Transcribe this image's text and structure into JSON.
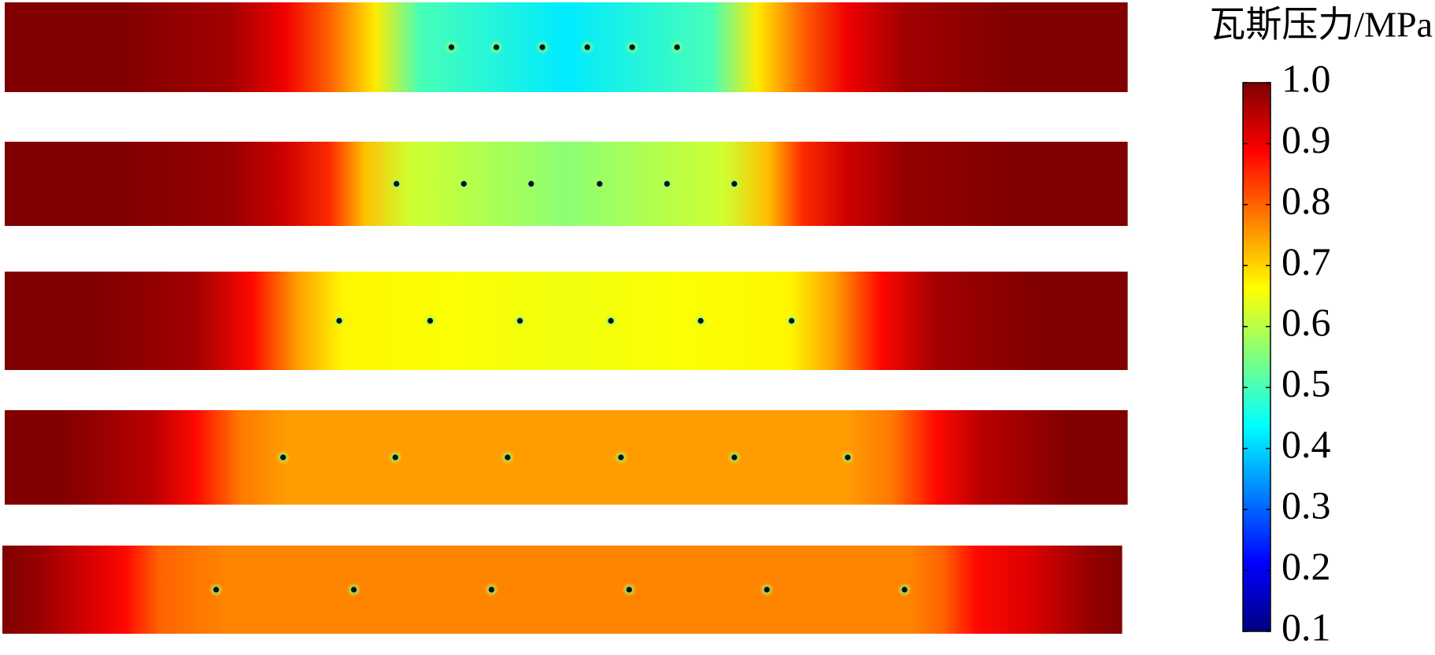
{
  "chart_data": {
    "type": "heatmap",
    "colorbar_title": "瓦斯压力/MPa",
    "clim": [
      0.1,
      1.0
    ],
    "cticks": [
      0.1,
      0.2,
      0.3,
      0.4,
      0.5,
      0.6,
      0.7,
      0.8,
      0.9,
      {
        "value": 1.0,
        "label": "1.0"
      }
    ],
    "colormap": "jet",
    "panels": [
      {
        "x": [
          0,
          0.1,
          0.2,
          0.25,
          0.29,
          0.33,
          0.37,
          0.5,
          0.63,
          0.67,
          0.71,
          0.75,
          0.8,
          0.9,
          1.0
        ],
        "values": [
          1,
          1,
          0.97,
          0.9,
          0.8,
          0.68,
          0.5,
          0.42,
          0.5,
          0.68,
          0.8,
          0.9,
          0.97,
          1,
          1
        ],
        "boreholes": [
          0.398,
          0.438,
          0.479,
          0.519,
          0.559,
          0.599
        ]
      },
      {
        "x": [
          0,
          0.1,
          0.2,
          0.25,
          0.29,
          0.32,
          0.36,
          0.5,
          0.64,
          0.68,
          0.71,
          0.75,
          0.8,
          0.9,
          1.0
        ],
        "values": [
          1,
          1,
          0.98,
          0.93,
          0.85,
          0.72,
          0.62,
          0.56,
          0.62,
          0.72,
          0.85,
          0.93,
          0.98,
          1,
          1
        ],
        "boreholes": [
          0.349,
          0.409,
          0.469,
          0.53,
          0.59,
          0.65
        ]
      },
      {
        "x": [
          0,
          0.08,
          0.17,
          0.22,
          0.26,
          0.3,
          0.4,
          0.5,
          0.6,
          0.7,
          0.74,
          0.78,
          0.83,
          0.92,
          1.0
        ],
        "values": [
          1,
          1,
          0.97,
          0.88,
          0.75,
          0.67,
          0.66,
          0.65,
          0.66,
          0.67,
          0.75,
          0.88,
          0.97,
          1,
          1
        ],
        "boreholes": [
          0.298,
          0.379,
          0.459,
          0.54,
          0.62,
          0.701
        ]
      },
      {
        "x": [
          0,
          0.05,
          0.13,
          0.17,
          0.21,
          0.25,
          0.4,
          0.5,
          0.6,
          0.75,
          0.79,
          0.83,
          0.87,
          0.95,
          1.0
        ],
        "values": [
          1,
          1,
          0.95,
          0.88,
          0.78,
          0.75,
          0.75,
          0.75,
          0.75,
          0.75,
          0.78,
          0.88,
          0.95,
          1,
          1
        ],
        "boreholes": [
          0.248,
          0.348,
          0.448,
          0.549,
          0.65,
          0.751
        ]
      },
      {
        "x": [
          0,
          0.03,
          0.08,
          0.11,
          0.14,
          0.2,
          0.35,
          0.5,
          0.65,
          0.81,
          0.84,
          0.87,
          0.92,
          0.97,
          1.0
        ],
        "values": [
          1,
          0.98,
          0.92,
          0.88,
          0.8,
          0.77,
          0.77,
          0.77,
          0.77,
          0.77,
          0.8,
          0.88,
          0.92,
          0.98,
          1
        ],
        "boreholes": [
          0.191,
          0.314,
          0.437,
          0.56,
          0.683,
          0.806
        ]
      }
    ]
  }
}
